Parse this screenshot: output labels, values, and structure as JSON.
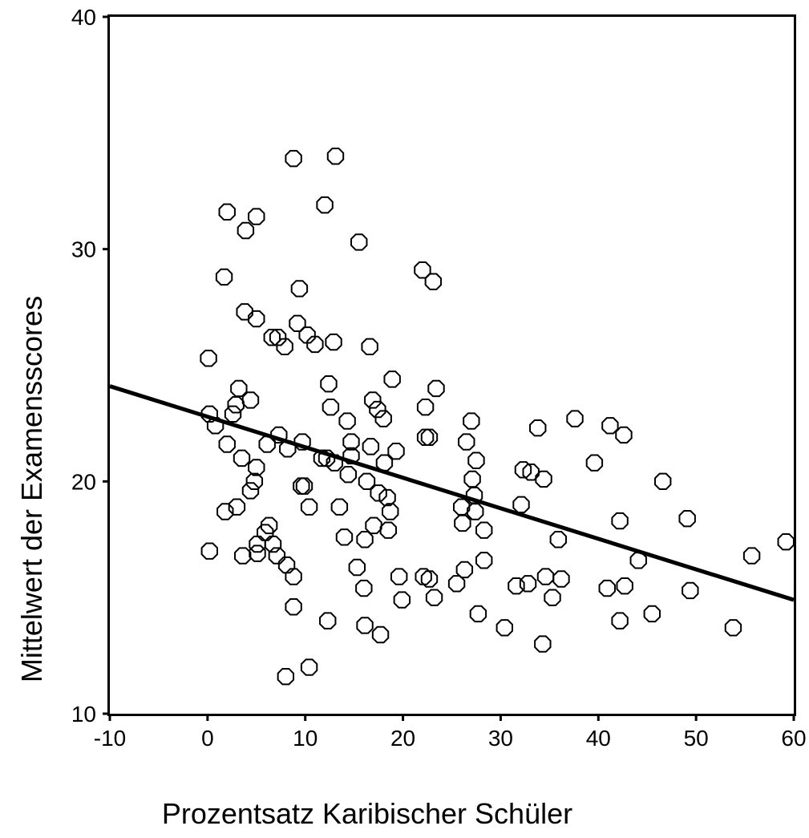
{
  "chart_data": {
    "type": "scatter",
    "title": "",
    "xlabel": "Prozentsatz Karibischer Schüler",
    "ylabel": "Mittelwert der Examensscores",
    "xlim": [
      -10,
      60
    ],
    "ylim": [
      10,
      40
    ],
    "x_ticks": [
      "-10",
      "0",
      "10",
      "20",
      "30",
      "40",
      "50",
      "60"
    ],
    "y_ticks": [
      "10",
      "20",
      "30",
      "40"
    ],
    "grid": false,
    "legend": "none",
    "marker": "open-octagon",
    "colors": {
      "marker": "#000000",
      "line": "#000000",
      "background": "#ffffff"
    },
    "regression_line": {
      "x": [
        -10,
        60
      ],
      "y": [
        24.1,
        14.9
      ]
    },
    "points": [
      [
        0.1,
        25.3
      ],
      [
        0.2,
        22.9
      ],
      [
        0.2,
        17.0
      ],
      [
        0.8,
        22.4
      ],
      [
        1.7,
        28.8
      ],
      [
        2.0,
        31.6
      ],
      [
        2.0,
        21.6
      ],
      [
        1.8,
        18.7
      ],
      [
        2.6,
        22.9
      ],
      [
        2.9,
        23.3
      ],
      [
        3.2,
        24.0
      ],
      [
        3.0,
        18.9
      ],
      [
        3.5,
        21.0
      ],
      [
        3.6,
        16.8
      ],
      [
        3.9,
        30.8
      ],
      [
        3.8,
        27.3
      ],
      [
        4.4,
        23.5
      ],
      [
        4.4,
        19.6
      ],
      [
        4.8,
        20.0
      ],
      [
        5.0,
        27.0
      ],
      [
        5.0,
        31.4
      ],
      [
        5.0,
        20.6
      ],
      [
        5.1,
        17.3
      ],
      [
        5.1,
        16.9
      ],
      [
        5.9,
        17.8
      ],
      [
        6.1,
        21.6
      ],
      [
        6.3,
        18.1
      ],
      [
        6.6,
        26.2
      ],
      [
        6.7,
        17.3
      ],
      [
        7.1,
        16.8
      ],
      [
        7.2,
        26.2
      ],
      [
        7.3,
        22.0
      ],
      [
        7.9,
        25.8
      ],
      [
        8.2,
        21.4
      ],
      [
        8.1,
        16.4
      ],
      [
        8.0,
        11.6
      ],
      [
        8.8,
        33.9
      ],
      [
        8.8,
        15.9
      ],
      [
        8.8,
        14.6
      ],
      [
        9.2,
        26.8
      ],
      [
        9.4,
        28.3
      ],
      [
        9.6,
        19.8
      ],
      [
        9.9,
        19.8
      ],
      [
        9.7,
        21.7
      ],
      [
        10.2,
        26.3
      ],
      [
        10.4,
        18.9
      ],
      [
        10.4,
        12.0
      ],
      [
        11.0,
        25.9
      ],
      [
        11.7,
        21.0
      ],
      [
        12.0,
        31.9
      ],
      [
        12.2,
        21.0
      ],
      [
        12.3,
        14.0
      ],
      [
        12.4,
        24.2
      ],
      [
        12.6,
        23.2
      ],
      [
        12.9,
        26.0
      ],
      [
        13.0,
        20.8
      ],
      [
        13.1,
        34.0
      ],
      [
        13.5,
        18.9
      ],
      [
        14.0,
        17.6
      ],
      [
        14.3,
        22.6
      ],
      [
        14.4,
        20.3
      ],
      [
        14.7,
        21.7
      ],
      [
        14.7,
        21.1
      ],
      [
        15.3,
        16.3
      ],
      [
        15.5,
        30.3
      ],
      [
        16.0,
        15.4
      ],
      [
        16.1,
        17.5
      ],
      [
        16.1,
        13.8
      ],
      [
        16.3,
        20.0
      ],
      [
        16.6,
        25.8
      ],
      [
        16.7,
        21.5
      ],
      [
        16.9,
        23.5
      ],
      [
        17.0,
        18.1
      ],
      [
        17.4,
        23.1
      ],
      [
        17.5,
        19.5
      ],
      [
        17.7,
        13.4
      ],
      [
        18.0,
        22.7
      ],
      [
        18.1,
        20.8
      ],
      [
        18.4,
        19.3
      ],
      [
        18.5,
        17.9
      ],
      [
        18.7,
        18.7
      ],
      [
        18.9,
        24.4
      ],
      [
        19.3,
        21.3
      ],
      [
        19.6,
        15.9
      ],
      [
        19.9,
        14.9
      ],
      [
        22.0,
        29.1
      ],
      [
        22.1,
        15.9
      ],
      [
        22.3,
        23.2
      ],
      [
        22.3,
        21.9
      ],
      [
        22.7,
        21.9
      ],
      [
        22.7,
        15.8
      ],
      [
        23.1,
        28.6
      ],
      [
        23.2,
        15.0
      ],
      [
        23.4,
        24.0
      ],
      [
        25.5,
        15.6
      ],
      [
        26.0,
        18.9
      ],
      [
        26.1,
        18.2
      ],
      [
        26.3,
        16.2
      ],
      [
        26.5,
        21.7
      ],
      [
        27.0,
        22.6
      ],
      [
        27.1,
        20.1
      ],
      [
        27.3,
        19.4
      ],
      [
        27.4,
        18.7
      ],
      [
        27.5,
        20.9
      ],
      [
        27.7,
        14.3
      ],
      [
        28.3,
        17.9
      ],
      [
        28.3,
        16.6
      ],
      [
        30.4,
        13.7
      ],
      [
        31.6,
        15.5
      ],
      [
        32.1,
        19.0
      ],
      [
        32.3,
        20.5
      ],
      [
        32.8,
        15.6
      ],
      [
        33.1,
        20.4
      ],
      [
        33.8,
        22.3
      ],
      [
        34.3,
        13.0
      ],
      [
        34.4,
        20.1
      ],
      [
        34.6,
        15.9
      ],
      [
        35.3,
        15.0
      ],
      [
        35.9,
        17.5
      ],
      [
        36.2,
        15.8
      ],
      [
        37.6,
        22.7
      ],
      [
        39.6,
        20.8
      ],
      [
        40.9,
        15.4
      ],
      [
        41.2,
        22.4
      ],
      [
        42.2,
        18.3
      ],
      [
        42.2,
        14.0
      ],
      [
        42.6,
        22.0
      ],
      [
        42.7,
        15.5
      ],
      [
        44.1,
        16.6
      ],
      [
        45.5,
        14.3
      ],
      [
        46.6,
        20.0
      ],
      [
        49.1,
        18.4
      ],
      [
        49.4,
        15.3
      ],
      [
        53.8,
        13.7
      ],
      [
        55.7,
        16.8
      ],
      [
        59.2,
        17.4
      ]
    ]
  }
}
